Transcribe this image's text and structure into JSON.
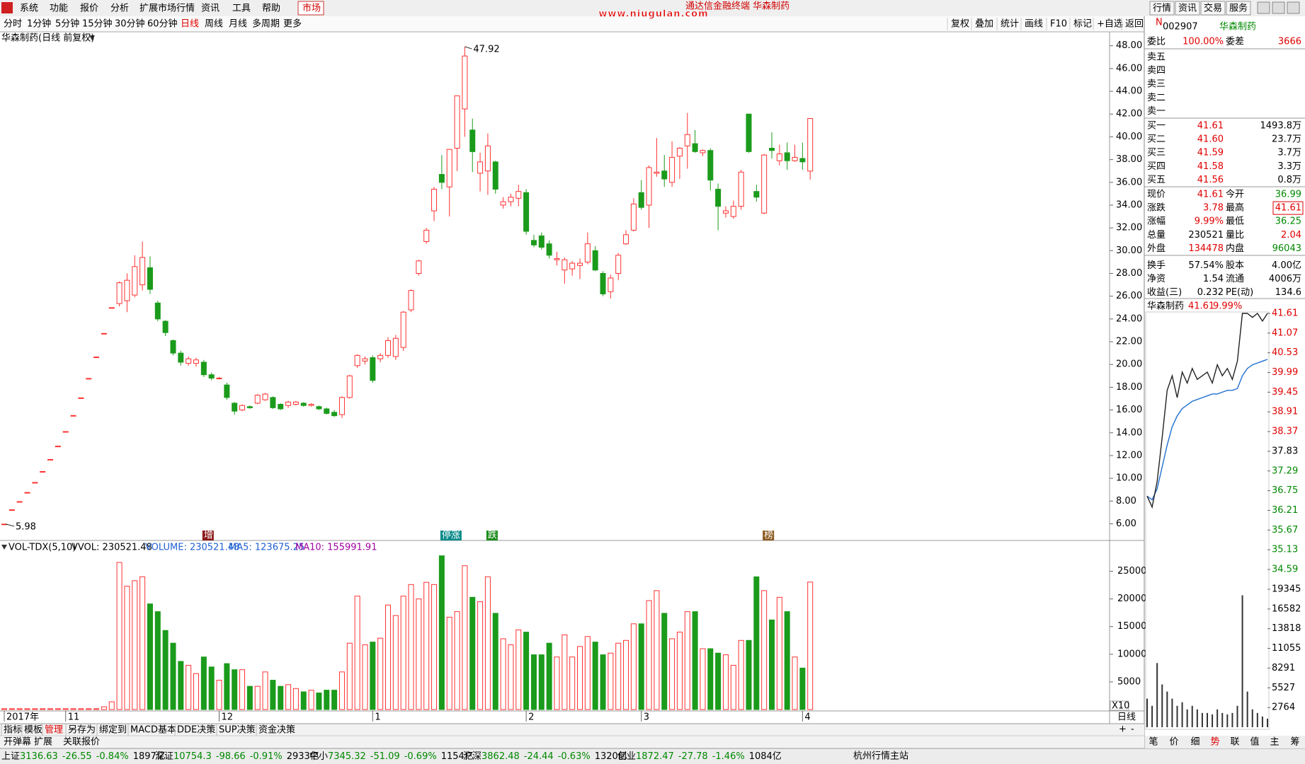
{
  "menu": [
    "系统",
    "功能",
    "报价",
    "分析",
    "扩展市场行情",
    "资讯",
    "工具",
    "帮助",
    "市场"
  ],
  "window_buttons": [
    "行情",
    "资讯",
    "交易",
    "服务"
  ],
  "watermark": "www.niugulan.com",
  "ticker": "通达信金融终端 华森制药",
  "periods": [
    "分时",
    "1分钟",
    "5分钟",
    "15分钟",
    "30分钟",
    "60分钟",
    "日线",
    "周线",
    "月线",
    "多周期",
    "更多"
  ],
  "tools": [
    "复权",
    "叠加",
    "统计",
    "画线",
    "F10",
    "标记",
    "+自选",
    "返回"
  ],
  "kline": {
    "title": "华森制药(日线 前复权)",
    "up_color": "#ff3232",
    "down_color": "#1b9b1b",
    "ylim": [
      4.54,
      49.1
    ],
    "yticks": [
      {
        "value": 6,
        "label": "6.00"
      },
      {
        "value": 8,
        "label": "8.00"
      },
      {
        "value": 10,
        "label": "10.00"
      },
      {
        "value": 12,
        "label": "12.00"
      },
      {
        "value": 14,
        "label": "14.00"
      },
      {
        "value": 16,
        "label": "16.00"
      },
      {
        "value": 18,
        "label": "18.00"
      },
      {
        "value": 20,
        "label": "20.00"
      },
      {
        "value": 22,
        "label": "22.00"
      },
      {
        "value": 24,
        "label": "24.00"
      },
      {
        "value": 26,
        "label": "26.00"
      },
      {
        "value": 28,
        "label": "28.00"
      },
      {
        "value": 30,
        "label": "30.00"
      },
      {
        "value": 32,
        "label": "32.00"
      },
      {
        "value": 34,
        "label": "34.00"
      },
      {
        "value": 36,
        "label": "36.00"
      },
      {
        "value": 38,
        "label": "38.00"
      },
      {
        "value": 40,
        "label": "40.00"
      },
      {
        "value": 42,
        "label": "42.00"
      },
      {
        "value": 44,
        "label": "44.00"
      },
      {
        "value": 46,
        "label": "46.00"
      },
      {
        "value": 48,
        "label": "48.00"
      }
    ],
    "high_label": {
      "index": 60,
      "value": 47.92
    },
    "low_label": {
      "index": 0,
      "value": 5.98
    },
    "candles": [
      [
        5.98,
        5.98,
        5.98,
        5.98
      ],
      [
        7.24,
        7.24,
        7.24,
        7.24
      ],
      [
        7.96,
        7.96,
        7.96,
        7.96
      ],
      [
        8.76,
        8.76,
        8.76,
        8.76
      ],
      [
        9.64,
        9.64,
        9.64,
        9.64
      ],
      [
        10.6,
        10.6,
        10.6,
        10.6
      ],
      [
        11.66,
        11.66,
        11.66,
        11.66
      ],
      [
        12.83,
        12.83,
        12.83,
        12.83
      ],
      [
        14.11,
        14.11,
        14.11,
        14.11
      ],
      [
        15.52,
        15.52,
        15.52,
        15.52
      ],
      [
        17.07,
        17.07,
        17.07,
        17.07
      ],
      [
        18.78,
        18.78,
        18.78,
        18.78
      ],
      [
        20.66,
        20.66,
        20.66,
        20.66
      ],
      [
        22.73,
        22.73,
        22.73,
        22.73
      ],
      [
        25,
        25,
        25,
        25
      ],
      [
        25.35,
        27.3,
        25.1,
        27.18
      ],
      [
        25.6,
        28,
        24.6,
        27.4
      ],
      [
        26.1,
        29.6,
        25.9,
        28.6
      ],
      [
        27,
        30.8,
        26.5,
        29.4
      ],
      [
        28.5,
        29.5,
        26.2,
        26.6
      ],
      [
        25.4,
        25.6,
        23.8,
        24
      ],
      [
        23.8,
        23.9,
        22.5,
        22.8
      ],
      [
        22.1,
        22.2,
        20.8,
        21
      ],
      [
        21,
        21.2,
        19.9,
        20.2
      ],
      [
        20.1,
        20.7,
        19.9,
        20.5
      ],
      [
        20.1,
        20.6,
        19.8,
        20.4
      ],
      [
        20.2,
        20.4,
        18.9,
        19.1
      ],
      [
        19.1,
        19.3,
        18.6,
        18.8
      ],
      [
        18.8,
        18.9,
        18.7,
        18.8
      ],
      [
        18.2,
        18.4,
        16.9,
        17.1
      ],
      [
        16.6,
        16.7,
        15.6,
        15.9
      ],
      [
        16,
        16.5,
        15.9,
        16.4
      ],
      [
        16.3,
        16.4,
        16.1,
        16.2
      ],
      [
        16.6,
        17.4,
        16.5,
        17.3
      ],
      [
        16.9,
        17.5,
        16.8,
        17.4
      ],
      [
        17.1,
        17.2,
        16.1,
        16.2
      ],
      [
        16.5,
        16.6,
        16,
        16.1
      ],
      [
        16.4,
        16.8,
        16.2,
        16.7
      ],
      [
        16.5,
        16.8,
        16.4,
        16.7
      ],
      [
        16.6,
        16.7,
        16.3,
        16.4
      ],
      [
        16.4,
        16.6,
        16.3,
        16.5
      ],
      [
        16.3,
        16.4,
        16,
        16.1
      ],
      [
        16.1,
        16.2,
        15.6,
        15.7
      ],
      [
        15.8,
        16,
        15.4,
        15.5
      ],
      [
        15.6,
        17.2,
        15.3,
        17.1
      ],
      [
        17.1,
        19.1,
        17,
        19
      ],
      [
        19.9,
        20.9,
        19.7,
        20.8
      ],
      [
        20.3,
        20.7,
        20,
        20.5
      ],
      [
        20.6,
        20.8,
        18.4,
        18.6
      ],
      [
        20.5,
        21,
        20.2,
        20.8
      ],
      [
        20.8,
        22.4,
        20.6,
        22.1
      ],
      [
        20.7,
        22.6,
        20.4,
        22.3
      ],
      [
        21.5,
        24.7,
        21.2,
        24.6
      ],
      [
        24.8,
        26.6,
        24.6,
        26.5
      ],
      [
        28,
        29.2,
        27.8,
        29.1
      ],
      [
        30.8,
        32,
        30.6,
        31.8
      ],
      [
        33.5,
        35.6,
        32.6,
        35.4
      ],
      [
        36.7,
        38.4,
        35.4,
        36
      ],
      [
        35.6,
        38.9,
        33,
        38.9
      ],
      [
        39,
        43.6,
        37,
        43.6
      ],
      [
        42.45,
        47.92,
        40,
        47.1
      ],
      [
        40.6,
        41.6,
        36.9,
        38.7
      ],
      [
        36.8,
        38.6,
        35.2,
        37.8
      ],
      [
        37,
        40.3,
        34.9,
        39.2
      ],
      [
        37.8,
        37.9,
        35,
        35.4
      ],
      [
        34,
        34.7,
        33.7,
        34.3
      ],
      [
        34.3,
        35,
        33.9,
        34.7
      ],
      [
        34.6,
        35.8,
        33.9,
        35.2
      ],
      [
        35.1,
        35.4,
        31.4,
        31.7
      ],
      [
        30.9,
        31.4,
        30.3,
        30.5
      ],
      [
        31.3,
        31.6,
        30.1,
        30.3
      ],
      [
        30.6,
        30.9,
        29.3,
        29.6
      ],
      [
        29.2,
        29.9,
        28.7,
        29.3
      ],
      [
        28.3,
        29.4,
        27.1,
        29.2
      ],
      [
        28.4,
        29.1,
        27.8,
        28.9
      ],
      [
        28.7,
        29.3,
        27.5,
        28.9
      ],
      [
        29,
        31.6,
        28.8,
        30.6
      ],
      [
        30,
        30.4,
        28.2,
        28.3
      ],
      [
        28,
        28.2,
        26,
        26.2
      ],
      [
        26.4,
        27.9,
        25.8,
        27.6
      ],
      [
        28,
        29.8,
        27.4,
        29.6
      ],
      [
        30.6,
        31.8,
        30.5,
        31.4
      ],
      [
        31.8,
        34.6,
        31.7,
        34.1
      ],
      [
        35.1,
        36.2,
        33.6,
        33.8
      ],
      [
        34,
        37.5,
        32,
        37.3
      ],
      [
        36.8,
        39.9,
        36.5,
        36.9
      ],
      [
        37,
        38.4,
        35.6,
        36.3
      ],
      [
        36,
        39.6,
        35.6,
        38.2
      ],
      [
        38.3,
        39.1,
        36.3,
        39
      ],
      [
        39.2,
        42.1,
        37.2,
        40.2
      ],
      [
        39.4,
        40.6,
        38.6,
        38.7
      ],
      [
        38.6,
        38.9,
        38.3,
        38.8
      ],
      [
        38.8,
        39,
        35.3,
        36.2
      ],
      [
        35.4,
        35.9,
        31.8,
        33.9
      ],
      [
        33.3,
        33.9,
        32.9,
        33.5
      ],
      [
        33,
        34.4,
        32.8,
        33.9
      ],
      [
        33.9,
        37.1,
        33.6,
        36.9
      ],
      [
        42,
        42,
        38.6,
        38.7
      ],
      [
        35.2,
        35.8,
        34.3,
        34.7
      ],
      [
        33.3,
        38.5,
        33.2,
        38.4
      ],
      [
        39,
        40.4,
        38.1,
        38.8
      ],
      [
        37.9,
        39.3,
        37.5,
        38.5
      ],
      [
        38.6,
        39.5,
        37.1,
        37.9
      ],
      [
        37.9,
        39.3,
        37.8,
        38.2
      ],
      [
        38.1,
        39.5,
        37.1,
        37.8
      ],
      [
        36.99,
        41.61,
        36.25,
        41.61
      ]
    ],
    "markers": [
      {
        "index": 26,
        "label": "增",
        "color": "#8b1a1a"
      },
      {
        "index": 57,
        "label": "停涨",
        "color": "#0a8a8a"
      },
      {
        "index": 63,
        "label": "跌",
        "color": "#1b8b1b"
      },
      {
        "index": 99,
        "label": "榜",
        "color": "#8a5a20"
      }
    ],
    "xticks": [
      {
        "value": 0,
        "label": "2017年"
      },
      {
        "value": 8,
        "label": "11"
      },
      {
        "value": 28,
        "label": "12"
      },
      {
        "value": 48,
        "label": "1"
      },
      {
        "value": 68,
        "label": "2"
      },
      {
        "value": 83,
        "label": "3"
      },
      {
        "value": 104,
        "label": "4"
      }
    ],
    "period_label": "日线"
  },
  "volume": {
    "name": "VOL-TDX(5,10)",
    "vvol": "VVOL: 230521.48",
    "volume": "VOLUME: 230521.48",
    "ma5": "MA5: 123675.25",
    "ma10": "MA10: 155991.91",
    "multiplier": "X10",
    "ylim": [
      0,
      28270
    ],
    "yticks": [
      5000,
      10000,
      15000,
      20000,
      25000
    ],
    "values": [
      150,
      150,
      150,
      150,
      150,
      150,
      150,
      150,
      150,
      150,
      150,
      150,
      150,
      500,
      1400,
      26600,
      22300,
      23300,
      24000,
      19100,
      17700,
      14300,
      12000,
      8700,
      8000,
      6500,
      9500,
      7700,
      5300,
      8300,
      7200,
      7200,
      4200,
      4200,
      6800,
      5300,
      4200,
      4500,
      3800,
      3200,
      3500,
      3000,
      3500,
      3500,
      6800,
      12000,
      20500,
      11700,
      12200,
      12900,
      18900,
      17000,
      20500,
      22600,
      20000,
      23000,
      22600,
      27800,
      16700,
      17700,
      26000,
      20300,
      19500,
      24000,
      17400,
      12800,
      11700,
      14400,
      14000,
      9900,
      9900,
      12000,
      9500,
      13500,
      9500,
      11400,
      13200,
      12200,
      9900,
      10200,
      12000,
      12500,
      15500,
      15500,
      19700,
      21500,
      17400,
      12800,
      14000,
      17700,
      17700,
      11000,
      11000,
      10200,
      9900,
      8000,
      12500,
      12500,
      24000,
      21500,
      16200,
      20300,
      17700,
      9500,
      7500,
      23052
    ]
  },
  "tabs": [
    "指标",
    "模板",
    "管理",
    "另存为",
    "绑定到",
    "MACD基本",
    "DDE决策",
    "SUP决策",
    "资金决策"
  ],
  "tabs2": [
    "开弹幕",
    "扩展",
    "关联报价"
  ],
  "quote": {
    "badge": "N",
    "code": "002907",
    "name": "华森制药",
    "wb": {
      "l1": "委比",
      "v1": "100.00%",
      "l2": "委差",
      "v2": "3666"
    },
    "sell": [
      "卖五",
      "卖四",
      "卖三",
      "卖二",
      "卖一"
    ],
    "buy": [
      {
        "label": "买一",
        "price": "41.61",
        "volume": "1493.8万"
      },
      {
        "label": "买二",
        "price": "41.60",
        "volume": "23.7万"
      },
      {
        "label": "买三",
        "price": "41.59",
        "volume": "3.7万"
      },
      {
        "label": "买四",
        "price": "41.58",
        "volume": "3.3万"
      },
      {
        "label": "买五",
        "price": "41.56",
        "volume": "0.8万"
      }
    ],
    "stats": [
      {
        "l1": "现价",
        "v1": "41.61",
        "c1": "#e00000",
        "l2": "今开",
        "v2": "36.99",
        "c2": "#008800"
      },
      {
        "l1": "涨跌",
        "v1": "3.78",
        "c1": "#e00000",
        "l2": "最高",
        "v2": "41.61",
        "c2": "#e00000"
      },
      {
        "l1": "涨幅",
        "v1": "9.99%",
        "c1": "#e00000",
        "l2": "最低",
        "v2": "36.25",
        "c2": "#008800"
      },
      {
        "l1": "总量",
        "v1": "230521",
        "c1": "#000000",
        "l2": "量比",
        "v2": "2.04",
        "c2": "#e00000"
      },
      {
        "l1": "外盘",
        "v1": "134478",
        "c1": "#e00000",
        "l2": "内盘",
        "v2": "96043",
        "c2": "#008800"
      },
      {
        "l1": "换手",
        "v1": "57.54%",
        "c1": "#000000",
        "l2": "股本",
        "v2": "4.00亿",
        "c2": "#000000"
      },
      {
        "l1": "净资",
        "v1": "1.54",
        "c1": "#000000",
        "l2": "流通",
        "v2": "4006万",
        "c2": "#000000"
      },
      {
        "l1": "收益(三)",
        "v1": "0.232",
        "c1": "#000000",
        "l2": "PE(动)",
        "v2": "134.6",
        "c2": "#000000"
      }
    ]
  },
  "mini": {
    "name": "华森制药",
    "price": "41.61",
    "pct": "9.99%",
    "ylim": [
      34.59,
      41.61
    ],
    "yticks": [
      {
        "value": 41.61,
        "color": "#e00000"
      },
      {
        "value": 41.07,
        "color": "#e00000"
      },
      {
        "value": 40.53,
        "color": "#e00000"
      },
      {
        "value": 39.99,
        "color": "#e00000"
      },
      {
        "value": 39.45,
        "color": "#e00000"
      },
      {
        "value": 38.91,
        "color": "#e00000"
      },
      {
        "value": 38.37,
        "color": "#e00000"
      },
      {
        "value": 37.83,
        "color": "#000000"
      },
      {
        "value": 37.29,
        "color": "#008800"
      },
      {
        "value": 36.75,
        "color": "#008800"
      },
      {
        "value": 36.21,
        "color": "#008800"
      },
      {
        "value": 35.67,
        "color": "#008800"
      },
      {
        "value": 35.13,
        "color": "#008800"
      },
      {
        "value": 34.59,
        "color": "#008800"
      }
    ],
    "price_line": [
      36.6,
      36.3,
      37,
      38.2,
      39.5,
      39.9,
      39.3,
      40,
      39.7,
      40.1,
      39.8,
      39.9,
      40,
      39.7,
      40.2,
      39.9,
      40.1,
      39.8,
      40.3,
      41.61,
      41.61,
      41.5,
      41.61,
      41.4,
      41.61
    ],
    "avg_line": [
      36.6,
      36.5,
      36.8,
      37.4,
      38,
      38.5,
      38.8,
      39,
      39.1,
      39.2,
      39.25,
      39.3,
      39.35,
      39.4,
      39.4,
      39.45,
      39.5,
      39.5,
      39.55,
      39.9,
      40.1,
      40.2,
      40.25,
      40.3,
      40.35
    ],
    "vol_ylim": [
      0,
      19345
    ],
    "vol_yticks": [
      2764,
      5527,
      8291,
      11055,
      13818,
      16582,
      19345
    ],
    "volumes": [
      4000,
      3000,
      9000,
      6000,
      5000,
      4000,
      3000,
      3500,
      2500,
      3000,
      2500,
      2000,
      2000,
      1800,
      2500,
      2000,
      1800,
      2000,
      3000,
      18500,
      5000,
      2500,
      2000,
      1500,
      1200
    ],
    "tabs": [
      "笔",
      "价",
      "细",
      "势",
      "联",
      "值",
      "主",
      "筹"
    ]
  },
  "indices": [
    {
      "name": "上证",
      "value": "3136.63",
      "change": "-26.55",
      "pct": "-0.84%",
      "amount": "1897亿"
    },
    {
      "name": "深证",
      "value": "10754.3",
      "change": "-98.66",
      "pct": "-0.91%",
      "amount": "2933亿"
    },
    {
      "name": "中小",
      "value": "7345.32",
      "change": "-51.09",
      "pct": "-0.69%",
      "amount": "1154亿"
    },
    {
      "name": "沪深",
      "value": "3862.48",
      "change": "-24.44",
      "pct": "-0.63%",
      "amount": "1320亿"
    },
    {
      "name": "创业",
      "value": "1872.47",
      "change": "-27.78",
      "pct": "-1.46%",
      "amount": "1084亿"
    }
  ],
  "server": "杭州行情主站"
}
